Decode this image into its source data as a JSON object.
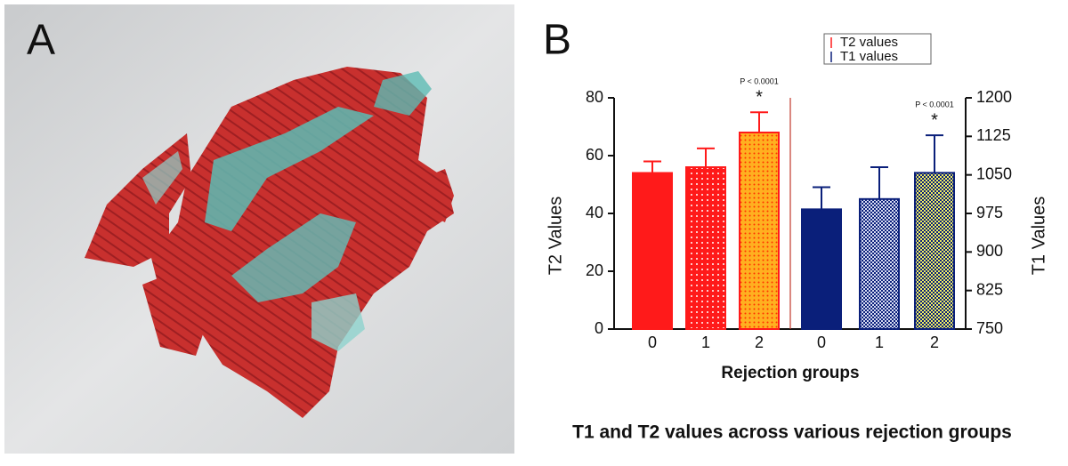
{
  "panel_labels": [
    "A",
    "B"
  ],
  "chart_data": {
    "type": "bar",
    "caption": "T1 and T2 values across various rejection groups",
    "x_label": "Rejection groups",
    "y_label": "T2 Values",
    "y2_label": "T1 Values",
    "categories": [
      "0",
      "1",
      "2",
      "0",
      "1",
      "2"
    ],
    "series": [
      {
        "name": "T2 values",
        "color": "#ff1a1a",
        "values": [
          54,
          56,
          68,
          null,
          null,
          null
        ],
        "errors": [
          4,
          6.5,
          7,
          null,
          null,
          null
        ]
      },
      {
        "name": "T1 values",
        "color": "#0a1f7a",
        "axis": "y2",
        "values": [
          null,
          null,
          null,
          983,
          1003,
          1054
        ],
        "errors": [
          null,
          null,
          null,
          43,
          62,
          73
        ]
      }
    ],
    "annotations": [
      {
        "text": "P < 0.0001",
        "mark": "*"
      },
      {
        "text": "P < 0.0001",
        "mark": "*"
      }
    ],
    "ylim": [
      0,
      80
    ],
    "yticks": [
      0,
      20,
      40,
      60,
      80
    ],
    "y2lim": [
      750,
      1200
    ],
    "y2ticks": [
      750,
      825,
      900,
      975,
      1050,
      1125,
      1200
    ],
    "legend": "top"
  }
}
